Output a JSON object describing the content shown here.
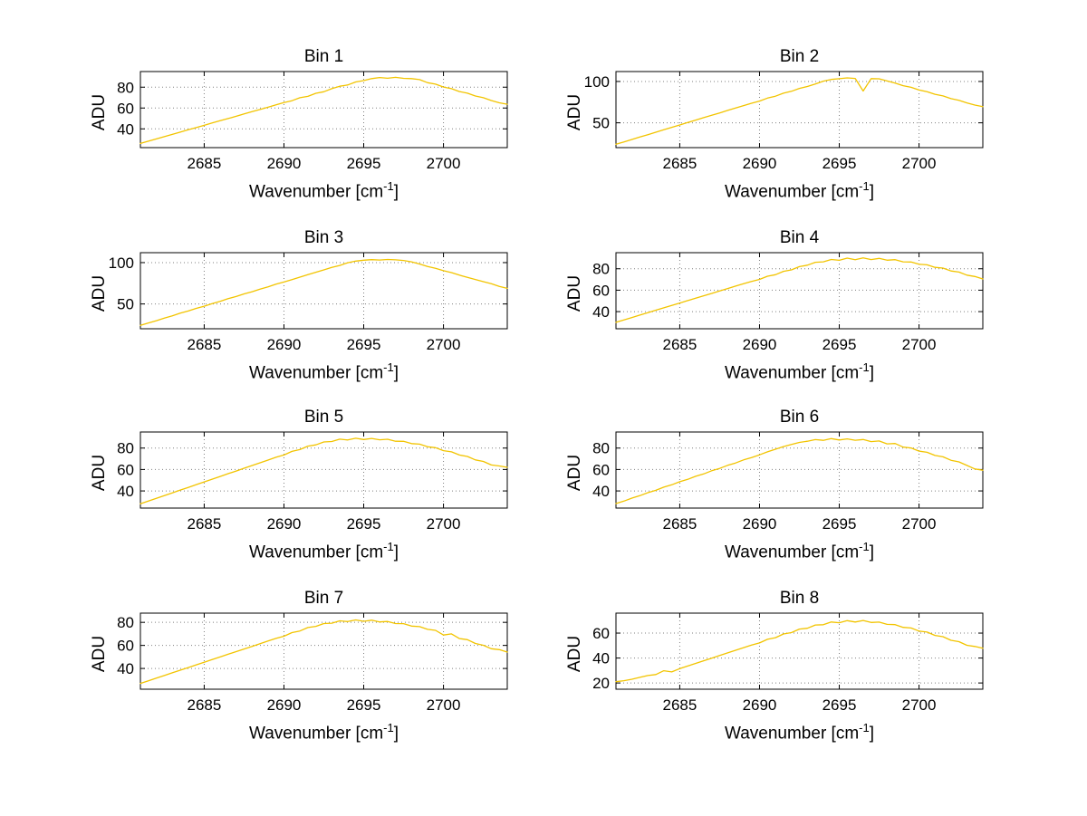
{
  "figure": {
    "background": "#ffffff"
  },
  "colors": {
    "series_line": "#f2c400",
    "grid": "#808080",
    "axis": "#000000"
  },
  "axes": {
    "xlim": [
      2681,
      2704
    ],
    "xticks": [
      2685,
      2690,
      2695,
      2700
    ],
    "xlabel_prefix": "Wavenumber [cm",
    "xlabel_sup": "-1",
    "xlabel_suffix": "]",
    "ylabel": "ADU"
  },
  "chart_data": [
    {
      "type": "line",
      "title": "Bin 1",
      "xlabel": "Wavenumber [cm⁻¹]",
      "ylabel": "ADU",
      "ylim": [
        22,
        95
      ],
      "yticks": [
        40,
        60,
        80
      ],
      "x_start": 2681,
      "x_step": 0.5,
      "values": [
        26.0,
        28.2,
        30.3,
        32.5,
        34.7,
        36.9,
        39.1,
        41.2,
        43.4,
        45.6,
        47.8,
        49.9,
        52.1,
        54.3,
        56.5,
        58.6,
        60.8,
        63.0,
        65.2,
        67.0,
        69.9,
        71.2,
        74.1,
        75.6,
        78.6,
        80.9,
        82.1,
        85.0,
        86.3,
        88.2,
        89.3,
        88.6,
        89.4,
        88.5,
        88.2,
        87.3,
        84.3,
        82.9,
        80.1,
        78.6,
        75.8,
        74.2,
        71.5,
        69.9,
        67.2,
        65.0,
        63.6
      ]
    },
    {
      "type": "line",
      "title": "Bin 2",
      "xlabel": "Wavenumber [cm⁻¹]",
      "ylabel": "ADU",
      "ylim": [
        20,
        112
      ],
      "yticks": [
        50,
        100
      ],
      "x_start": 2681,
      "x_step": 0.5,
      "values": [
        24.0,
        26.9,
        29.9,
        32.8,
        35.7,
        38.6,
        41.6,
        44.5,
        47.4,
        50.3,
        53.3,
        56.2,
        59.1,
        62.0,
        65.0,
        67.9,
        70.8,
        73.7,
        76.3,
        79.9,
        82.2,
        85.8,
        88.1,
        91.6,
        93.9,
        97.0,
        100.4,
        102.5,
        103.4,
        104.3,
        103.7,
        88.5,
        103.5,
        103.2,
        100.6,
        98.1,
        94.9,
        92.9,
        89.7,
        87.7,
        84.5,
        82.5,
        79.3,
        77.3,
        74.1,
        71.5,
        69.5
      ]
    },
    {
      "type": "line",
      "title": "Bin 3",
      "xlabel": "Wavenumber [cm⁻¹]",
      "ylabel": "ADU",
      "ylim": [
        20,
        112
      ],
      "yticks": [
        50,
        100
      ],
      "x_start": 2681,
      "x_step": 0.5,
      "values": [
        24.2,
        27.0,
        29.8,
        32.9,
        35.6,
        38.8,
        41.5,
        44.6,
        47.3,
        50.5,
        53.2,
        56.4,
        59.0,
        62.2,
        64.8,
        68.0,
        70.6,
        73.9,
        76.5,
        79.5,
        82.4,
        85.5,
        88.3,
        91.2,
        94.1,
        96.6,
        99.8,
        101.8,
        102.9,
        103.6,
        103.1,
        103.8,
        103.3,
        102.6,
        100.9,
        98.3,
        95.4,
        93.1,
        90.2,
        87.9,
        84.8,
        82.2,
        79.6,
        77.0,
        74.4,
        71.3,
        68.9
      ]
    },
    {
      "type": "line",
      "title": "Bin 4",
      "xlabel": "Wavenumber [cm⁻¹]",
      "ylabel": "ADU",
      "ylim": [
        24,
        95
      ],
      "yticks": [
        40,
        60,
        80
      ],
      "x_start": 2681,
      "x_step": 0.5,
      "values": [
        30.0,
        32.3,
        34.5,
        36.8,
        39.0,
        41.3,
        43.5,
        45.8,
        48.0,
        50.3,
        52.5,
        54.8,
        57.0,
        59.3,
        61.5,
        63.8,
        66.0,
        68.2,
        70.1,
        73.0,
        74.5,
        77.6,
        78.9,
        82.0,
        83.3,
        86.0,
        86.5,
        88.7,
        87.9,
        89.9,
        88.4,
        90.2,
        88.6,
        89.7,
        88.0,
        88.5,
        86.5,
        86.3,
        84.2,
        83.7,
        81.3,
        80.6,
        77.9,
        76.9,
        74.0,
        72.8,
        70.5
      ]
    },
    {
      "type": "line",
      "title": "Bin 5",
      "xlabel": "Wavenumber [cm⁻¹]",
      "ylabel": "ADU",
      "ylim": [
        24,
        95
      ],
      "yticks": [
        40,
        60,
        80
      ],
      "x_start": 2681,
      "x_step": 0.5,
      "values": [
        28.0,
        30.6,
        33.1,
        35.7,
        38.2,
        40.8,
        43.3,
        45.9,
        48.4,
        51.0,
        53.5,
        56.1,
        58.6,
        61.2,
        63.7,
        66.3,
        68.8,
        71.4,
        73.5,
        76.9,
        78.6,
        81.8,
        83.0,
        85.7,
        86.1,
        88.3,
        87.6,
        89.2,
        88.0,
        89.0,
        87.7,
        88.2,
        86.4,
        86.3,
        84.2,
        83.7,
        81.2,
        80.4,
        77.6,
        76.5,
        73.5,
        72.2,
        69.0,
        67.5,
        64.2,
        63.3,
        62.0
      ]
    },
    {
      "type": "line",
      "title": "Bin 6",
      "xlabel": "Wavenumber [cm⁻¹]",
      "ylabel": "ADU",
      "ylim": [
        24,
        95
      ],
      "yticks": [
        40,
        60,
        80
      ],
      "x_start": 2681,
      "x_step": 0.5,
      "values": [
        28.2,
        30.5,
        33.3,
        35.6,
        38.4,
        40.6,
        43.5,
        45.7,
        48.6,
        50.8,
        53.7,
        55.9,
        58.8,
        61.0,
        63.9,
        66.1,
        69.0,
        71.2,
        73.7,
        76.5,
        78.9,
        81.4,
        83.3,
        85.3,
        86.4,
        87.9,
        87.2,
        88.8,
        87.6,
        88.6,
        87.3,
        88.0,
        86.0,
        86.6,
        83.9,
        84.3,
        80.9,
        80.1,
        77.2,
        76.1,
        73.1,
        71.8,
        68.6,
        67.1,
        63.8,
        60.5,
        59.3
      ]
    },
    {
      "type": "line",
      "title": "Bin 7",
      "xlabel": "Wavenumber [cm⁻¹]",
      "ylabel": "ADU",
      "ylim": [
        22,
        88
      ],
      "yticks": [
        40,
        60,
        80
      ],
      "x_start": 2681,
      "x_step": 0.5,
      "values": [
        27.0,
        29.3,
        31.6,
        33.9,
        36.2,
        38.5,
        40.8,
        43.1,
        45.4,
        47.7,
        50.0,
        52.3,
        54.6,
        56.9,
        59.2,
        61.5,
        63.8,
        66.1,
        68.0,
        71.1,
        72.5,
        75.5,
        76.5,
        79.0,
        79.3,
        81.3,
        80.7,
        82.1,
        80.9,
        81.9,
        80.4,
        80.8,
        79.0,
        78.9,
        76.8,
        76.3,
        73.9,
        73.1,
        69.0,
        70.0,
        65.9,
        65.0,
        61.7,
        60.1,
        57.1,
        56.3,
        54.2
      ]
    },
    {
      "type": "line",
      "title": "Bin 8",
      "xlabel": "Wavenumber [cm⁻¹]",
      "ylabel": "ADU",
      "ylim": [
        15,
        76
      ],
      "yticks": [
        20,
        40,
        60
      ],
      "x_start": 2681,
      "x_step": 0.5,
      "values": [
        21.0,
        21.8,
        23.0,
        24.5,
        26.0,
        26.8,
        29.8,
        28.9,
        31.5,
        33.6,
        35.7,
        37.8,
        39.9,
        42.0,
        44.1,
        46.2,
        48.3,
        50.4,
        52.1,
        55.0,
        56.3,
        59.3,
        60.4,
        63.2,
        63.9,
        66.5,
        66.7,
        68.9,
        68.3,
        70.0,
        68.9,
        70.1,
        68.5,
        68.8,
        67.0,
        66.8,
        64.6,
        64.1,
        61.6,
        60.8,
        58.1,
        57.1,
        54.2,
        53.1,
        50.2,
        49.3,
        47.8
      ]
    }
  ]
}
